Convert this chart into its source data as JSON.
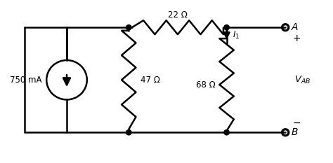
{
  "bg_color": "#ffffff",
  "line_color": "#000000",
  "line_width": 1.8,
  "fig_width": 4.74,
  "fig_height": 2.33,
  "dpi": 100,
  "label_750mA": "750 mA",
  "label_47ohm": "47 Ω",
  "label_22ohm": "22 Ω",
  "label_68ohm": "68 Ω",
  "label_I1": "$I_1$",
  "label_VAB": "$V_{AB}$",
  "label_A": "A",
  "label_B": "B",
  "label_plus": "+",
  "label_minus": "−"
}
